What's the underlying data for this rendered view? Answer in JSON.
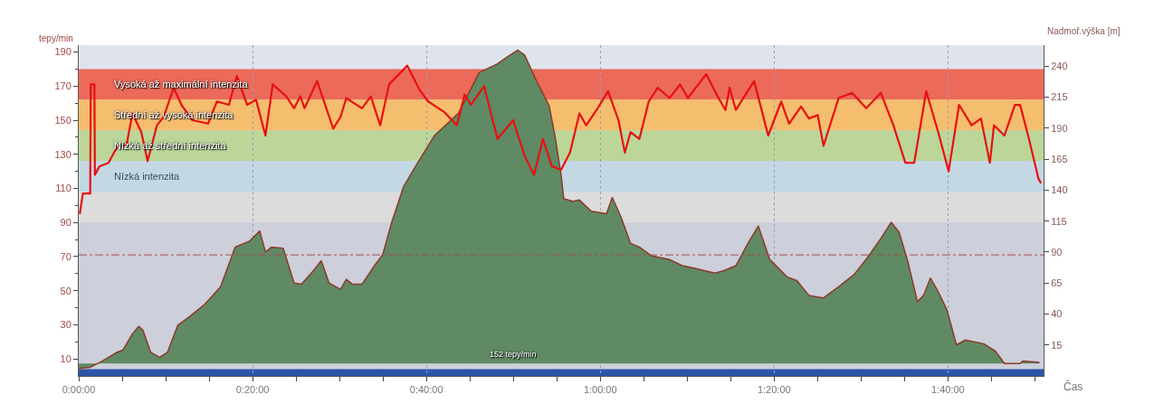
{
  "chart_data": {
    "type": "line",
    "xlabel": "Čas",
    "ylabel": "tepy/min",
    "y2label": "Nadmoř.výška [m]",
    "xlim": [
      0,
      1.85
    ],
    "ylim": [
      0,
      194
    ],
    "y2lim": [
      -10,
      257
    ],
    "xticks": [
      {
        "value": 0,
        "label": "0:00:00"
      },
      {
        "value": 0.0833,
        "label": null
      },
      {
        "value": 0.1667,
        "label": null
      },
      {
        "value": 0.25,
        "label": null
      },
      {
        "value": 0.3333,
        "label": "0:20:00"
      },
      {
        "value": 0.4167,
        "label": null
      },
      {
        "value": 0.5,
        "label": null
      },
      {
        "value": 0.5833,
        "label": null
      },
      {
        "value": 0.6667,
        "label": "0:40:00"
      },
      {
        "value": 0.75,
        "label": null
      },
      {
        "value": 0.8333,
        "label": null
      },
      {
        "value": 0.9167,
        "label": null
      },
      {
        "value": 1,
        "label": "1:00:00"
      },
      {
        "value": 1.0833,
        "label": null
      },
      {
        "value": 1.1667,
        "label": null
      },
      {
        "value": 1.25,
        "label": null
      },
      {
        "value": 1.3333,
        "label": "1:20:00"
      },
      {
        "value": 1.4167,
        "label": null
      },
      {
        "value": 1.5,
        "label": null
      },
      {
        "value": 1.5833,
        "label": null
      },
      {
        "value": 1.6667,
        "label": "1:40:00"
      },
      {
        "value": 1.75,
        "label": null
      },
      {
        "value": 1.8333,
        "label": null
      }
    ],
    "yticks": [
      10,
      {
        "value": 20,
        "label": null
      },
      30,
      {
        "value": 40,
        "label": null
      },
      50,
      {
        "value": 60,
        "label": null
      },
      70,
      {
        "value": 80,
        "label": null
      },
      90,
      {
        "value": 100,
        "label": null
      },
      110,
      {
        "value": 120,
        "label": null
      },
      130,
      {
        "value": 140,
        "label": null
      },
      150,
      {
        "value": 160,
        "label": null
      },
      170,
      {
        "value": 180,
        "label": null
      },
      190
    ],
    "y2ticks": [
      15,
      40,
      65,
      90,
      115,
      140,
      165,
      190,
      215,
      240
    ],
    "grid": "x",
    "bands": [
      {
        "axis": "y",
        "from": 180,
        "to": 194,
        "label": null,
        "color": "#dfe4ec"
      },
      {
        "axis": "y",
        "from": 162,
        "to": 180,
        "label": "Vysoká až maximální intenzita",
        "color": "#ec6a5a"
      },
      {
        "axis": "y",
        "from": 144,
        "to": 162,
        "label": "Střední až vysoká intenzita",
        "color": "#f5bd6e"
      },
      {
        "axis": "y",
        "from": 126,
        "to": 144,
        "label": "Nízká až střední intenzita",
        "color": "#bcd69a"
      },
      {
        "axis": "y",
        "from": 108,
        "to": 126,
        "label": "Nízká intenzita",
        "color": "#c3d8e4"
      },
      {
        "axis": "y",
        "from": 90,
        "to": 108,
        "label": null,
        "color": "#dcdcdc"
      },
      {
        "axis": "y",
        "from": 0,
        "to": 4,
        "label": "152 tepy/min",
        "color": "#2a55a8"
      }
    ],
    "ref_lines": [
      {
        "axis": "y",
        "value": 71,
        "label": null,
        "color": "#a05050",
        "line_style": "dashdot"
      }
    ],
    "series": [
      {
        "type": "area",
        "axis": "y2",
        "color": "#5f8a63",
        "x": [
          0,
          0.022,
          0.045,
          0.073,
          0.085,
          0.103,
          0.115,
          0.123,
          0.138,
          0.155,
          0.17,
          0.19,
          0.213,
          0.242,
          0.272,
          0.3,
          0.328,
          0.347,
          0.358,
          0.37,
          0.392,
          0.413,
          0.427,
          0.45,
          0.465,
          0.48,
          0.502,
          0.513,
          0.525,
          0.543,
          0.567,
          0.583,
          0.6,
          0.623,
          0.647,
          0.682,
          0.728,
          0.768,
          0.803,
          0.82,
          0.842,
          0.855,
          0.878,
          0.902,
          0.913,
          0.925,
          0.93,
          0.948,
          0.96,
          0.983,
          1.012,
          1.023,
          1.04,
          1.058,
          1.075,
          1.098,
          1.133,
          1.157,
          1.18,
          1.22,
          1.237,
          1.26,
          1.283,
          1.303,
          1.325,
          1.358,
          1.377,
          1.4,
          1.428,
          1.457,
          1.487,
          1.515,
          1.538,
          1.558,
          1.573,
          1.59,
          1.608,
          1.62,
          1.633,
          1.648,
          1.665,
          1.683,
          1.7,
          1.735,
          1.758,
          1.775,
          1.805,
          1.81,
          1.842
        ],
        "values": [
          -4,
          -3,
          2,
          9,
          11,
          24,
          30,
          27,
          9,
          5,
          9,
          31,
          38,
          48,
          62,
          94,
          99,
          107,
          90,
          94,
          93,
          65,
          64,
          75,
          83,
          65,
          60,
          68,
          64,
          64,
          79,
          88,
          114,
          143,
          160,
          184,
          202,
          235,
          242,
          247,
          253,
          249,
          228,
          208,
          184,
          152,
          133,
          131,
          132,
          123,
          121,
          134,
          118,
          97,
          94,
          87,
          84,
          79,
          77,
          73,
          75,
          79,
          97,
          111,
          84,
          70,
          67,
          55,
          53,
          62,
          72,
          87,
          101,
          114,
          106,
          82,
          50,
          55,
          69,
          58,
          43,
          15,
          19,
          16,
          10,
          0,
          0,
          2,
          1
        ]
      },
      {
        "axis": "y",
        "color": "#e81010",
        "x": [
          0.002,
          0.008,
          0.022,
          0.023,
          0.03,
          0.031,
          0.04,
          0.057,
          0.073,
          0.092,
          0.103,
          0.12,
          0.132,
          0.15,
          0.163,
          0.182,
          0.197,
          0.218,
          0.248,
          0.265,
          0.288,
          0.303,
          0.323,
          0.34,
          0.358,
          0.372,
          0.398,
          0.413,
          0.425,
          0.433,
          0.457,
          0.488,
          0.502,
          0.513,
          0.543,
          0.56,
          0.578,
          0.595,
          0.63,
          0.653,
          0.67,
          0.7,
          0.725,
          0.74,
          0.752,
          0.777,
          0.803,
          0.833,
          0.855,
          0.873,
          0.89,
          0.907,
          0.925,
          0.942,
          0.96,
          0.973,
          0.995,
          1.015,
          1.035,
          1.047,
          1.058,
          1.075,
          1.093,
          1.11,
          1.133,
          1.153,
          1.168,
          1.203,
          1.225,
          1.24,
          1.248,
          1.26,
          1.295,
          1.322,
          1.347,
          1.362,
          1.385,
          1.4,
          1.417,
          1.428,
          1.457,
          1.483,
          1.51,
          1.538,
          1.562,
          1.585,
          1.602,
          1.625,
          1.648,
          1.668,
          1.688,
          1.712,
          1.73,
          1.747,
          1.755,
          1.775,
          1.795,
          1.805,
          1.822,
          1.84,
          1.845
        ],
        "values": [
          95,
          107,
          107,
          171,
          171,
          118,
          123,
          125,
          134,
          136,
          154,
          143,
          126,
          147,
          152,
          169,
          159,
          150,
          148,
          161,
          159,
          176,
          159,
          162,
          141,
          171,
          164,
          157,
          164,
          157,
          173,
          145,
          152,
          163,
          157,
          164,
          147,
          171,
          182,
          168,
          161,
          155,
          147,
          165,
          159,
          170,
          139,
          150,
          129,
          118,
          139,
          123,
          121,
          131,
          154,
          147,
          157,
          167,
          150,
          131,
          143,
          139,
          161,
          169,
          163,
          171,
          163,
          177,
          164,
          156,
          169,
          156,
          173,
          141,
          161,
          148,
          158,
          151,
          153,
          135,
          163,
          166,
          157,
          166,
          147,
          125,
          125,
          167,
          143,
          120,
          159,
          147,
          151,
          125,
          147,
          141,
          159,
          159,
          139,
          116,
          113
        ]
      }
    ]
  }
}
